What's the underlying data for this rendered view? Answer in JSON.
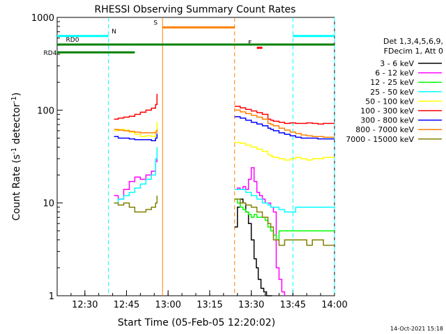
{
  "chart_data": {
    "type": "line",
    "title": "RHESSI Observing Summary Count Rates",
    "xlabel": "Start Time (05-Feb-05 12:20:02)",
    "ylabel_main": "Count Rate (s",
    "ylabel_sup1": "-1",
    "ylabel_mid": " detector",
    "ylabel_sup2": "-1",
    "ylabel_end": ")",
    "yscale": "log",
    "ylim": [
      1,
      1000
    ],
    "xlim_minutes": [
      0,
      100
    ],
    "x_ticks": [
      {
        "m": 10,
        "label": "12:30"
      },
      {
        "m": 25,
        "label": "12:45"
      },
      {
        "m": 40,
        "label": "13:00"
      },
      {
        "m": 55,
        "label": "13:15"
      },
      {
        "m": 70,
        "label": "13:30"
      },
      {
        "m": 85,
        "label": "13:45"
      },
      {
        "m": 100,
        "label": "14:00"
      }
    ],
    "y_ticks": [
      {
        "v": 1,
        "label": "1"
      },
      {
        "v": 10,
        "label": "10"
      },
      {
        "v": 100,
        "label": "100"
      },
      {
        "v": 1000,
        "label": "1000"
      }
    ],
    "legend_header": [
      "Det 1,3,4,5,6,9,",
      "FDecim 1, Att 0"
    ],
    "series": [
      {
        "name": "3 - 6 keV",
        "color": "#000000",
        "points": [
          [
            64,
            5.5
          ],
          [
            65,
            9
          ],
          [
            66,
            11
          ],
          [
            67,
            10
          ],
          [
            68,
            8
          ],
          [
            69,
            6
          ],
          [
            70,
            4
          ],
          [
            71,
            2.5
          ],
          [
            71.8,
            2
          ],
          [
            72.5,
            1.5
          ],
          [
            73.5,
            1.2
          ],
          [
            74.5,
            1.1
          ],
          [
            75.5,
            1
          ],
          [
            76.5,
            1
          ],
          [
            77.5,
            1
          ]
        ]
      },
      {
        "name": "6 - 12 keV",
        "color": "#ff00ff",
        "points": [
          [
            20.5,
            12
          ],
          [
            22,
            11
          ],
          [
            24,
            14
          ],
          [
            26,
            17
          ],
          [
            28,
            19
          ],
          [
            30,
            18
          ],
          [
            32,
            20
          ],
          [
            34,
            22
          ],
          [
            35.5,
            28
          ],
          [
            36,
            35
          ],
          [
            64,
            14
          ],
          [
            65,
            14.5
          ],
          [
            66,
            14
          ],
          [
            67,
            15
          ],
          [
            68,
            14
          ],
          [
            69,
            18
          ],
          [
            70,
            24
          ],
          [
            71,
            17
          ],
          [
            72,
            13
          ],
          [
            73,
            12
          ],
          [
            74,
            11
          ],
          [
            75,
            10
          ],
          [
            76,
            10
          ],
          [
            77,
            9
          ],
          [
            78,
            8
          ],
          [
            79,
            2
          ],
          [
            80,
            1.5
          ],
          [
            81,
            1.1
          ],
          [
            82,
            1
          ],
          [
            100,
            1
          ]
        ]
      },
      {
        "name": "12 - 25 keV",
        "color": "#00ff00",
        "points": [
          [
            64,
            11
          ],
          [
            65,
            10
          ],
          [
            66,
            9
          ],
          [
            67,
            8.5
          ],
          [
            68,
            8
          ],
          [
            69,
            7.5
          ],
          [
            70,
            7
          ],
          [
            71,
            7.5
          ],
          [
            72,
            7
          ],
          [
            73,
            7
          ],
          [
            74,
            7
          ],
          [
            75,
            6.5
          ],
          [
            76,
            5.5
          ],
          [
            77,
            5
          ],
          [
            78,
            4.5
          ],
          [
            79,
            4
          ],
          [
            80,
            5
          ],
          [
            85,
            5
          ],
          [
            90,
            5
          ],
          [
            95,
            5
          ],
          [
            100,
            5
          ]
        ]
      },
      {
        "name": "25 - 50 keV",
        "color": "#00ffff",
        "points": [
          [
            20.5,
            10
          ],
          [
            22,
            11
          ],
          [
            24,
            12
          ],
          [
            26,
            13
          ],
          [
            28,
            14.5
          ],
          [
            30,
            16
          ],
          [
            32,
            18
          ],
          [
            34,
            20
          ],
          [
            35.5,
            30
          ],
          [
            36,
            40
          ],
          [
            64,
            14
          ],
          [
            66,
            14
          ],
          [
            68,
            13
          ],
          [
            70,
            12
          ],
          [
            72,
            11
          ],
          [
            74,
            10
          ],
          [
            76,
            9.5
          ],
          [
            77,
            9
          ],
          [
            78,
            9
          ],
          [
            80,
            8.5
          ],
          [
            82,
            8
          ],
          [
            84,
            8
          ],
          [
            86,
            9
          ],
          [
            88,
            9
          ],
          [
            90,
            9
          ],
          [
            92,
            9
          ],
          [
            94,
            9
          ],
          [
            96,
            9
          ],
          [
            98,
            9
          ],
          [
            100,
            9
          ]
        ]
      },
      {
        "name": "50 - 100 keV",
        "color": "#ffff00",
        "points": [
          [
            20.5,
            60
          ],
          [
            22,
            62
          ],
          [
            24,
            61
          ],
          [
            26,
            58
          ],
          [
            28,
            55
          ],
          [
            30,
            52
          ],
          [
            32,
            53
          ],
          [
            34,
            52
          ],
          [
            35.5,
            60
          ],
          [
            36,
            75
          ],
          [
            64,
            45
          ],
          [
            66,
            44
          ],
          [
            68,
            42
          ],
          [
            70,
            40
          ],
          [
            72,
            38
          ],
          [
            74,
            36
          ],
          [
            76,
            33
          ],
          [
            77,
            32
          ],
          [
            78,
            31
          ],
          [
            80,
            30
          ],
          [
            82,
            29
          ],
          [
            84,
            30
          ],
          [
            86,
            31
          ],
          [
            88,
            30
          ],
          [
            90,
            29
          ],
          [
            92,
            30
          ],
          [
            94,
            30
          ],
          [
            96,
            31
          ],
          [
            98,
            31
          ],
          [
            100,
            31
          ]
        ]
      },
      {
        "name": "100 - 300 keV",
        "color": "#ff0000",
        "points": [
          [
            20.5,
            80
          ],
          [
            22,
            82
          ],
          [
            24,
            84
          ],
          [
            26,
            86
          ],
          [
            28,
            90
          ],
          [
            30,
            95
          ],
          [
            32,
            100
          ],
          [
            34,
            105
          ],
          [
            35.5,
            115
          ],
          [
            36,
            150
          ],
          [
            64,
            110
          ],
          [
            66,
            106
          ],
          [
            68,
            102
          ],
          [
            70,
            98
          ],
          [
            72,
            94
          ],
          [
            74,
            90
          ],
          [
            76,
            80
          ],
          [
            77,
            78
          ],
          [
            78,
            76
          ],
          [
            80,
            74
          ],
          [
            82,
            72
          ],
          [
            84,
            73
          ],
          [
            86,
            72
          ],
          [
            88,
            72
          ],
          [
            90,
            73
          ],
          [
            92,
            72
          ],
          [
            94,
            71
          ],
          [
            96,
            72
          ],
          [
            98,
            72
          ],
          [
            100,
            72
          ]
        ]
      },
      {
        "name": "300 - 800 keV",
        "color": "#0000ff",
        "points": [
          [
            20.5,
            52
          ],
          [
            22,
            50
          ],
          [
            24,
            50
          ],
          [
            26,
            49
          ],
          [
            28,
            48
          ],
          [
            30,
            48
          ],
          [
            32,
            48
          ],
          [
            34,
            47
          ],
          [
            35.5,
            50
          ],
          [
            36,
            56
          ],
          [
            64,
            85
          ],
          [
            66,
            82
          ],
          [
            68,
            78
          ],
          [
            70,
            74
          ],
          [
            72,
            71
          ],
          [
            74,
            68
          ],
          [
            76,
            64
          ],
          [
            77,
            62
          ],
          [
            78,
            60
          ],
          [
            80,
            57
          ],
          [
            82,
            55
          ],
          [
            84,
            53
          ],
          [
            86,
            51
          ],
          [
            88,
            50
          ],
          [
            90,
            50
          ],
          [
            92,
            50
          ],
          [
            94,
            49
          ],
          [
            96,
            49
          ],
          [
            98,
            49
          ],
          [
            100,
            49
          ]
        ]
      },
      {
        "name": "800 - 7000 keV",
        "color": "#ff8000",
        "points": [
          [
            20.5,
            62
          ],
          [
            22,
            61
          ],
          [
            24,
            60
          ],
          [
            26,
            59
          ],
          [
            28,
            58
          ],
          [
            30,
            57
          ],
          [
            32,
            57
          ],
          [
            34,
            57
          ],
          [
            35.5,
            58
          ],
          [
            36,
            62
          ],
          [
            64,
            100
          ],
          [
            66,
            96
          ],
          [
            68,
            92
          ],
          [
            70,
            88
          ],
          [
            72,
            84
          ],
          [
            74,
            80
          ],
          [
            76,
            72
          ],
          [
            77,
            70
          ],
          [
            78,
            68
          ],
          [
            80,
            64
          ],
          [
            82,
            61
          ],
          [
            84,
            58
          ],
          [
            86,
            56
          ],
          [
            88,
            54
          ],
          [
            90,
            53
          ],
          [
            92,
            52
          ],
          [
            94,
            52
          ],
          [
            96,
            51
          ],
          [
            98,
            51
          ],
          [
            100,
            51
          ]
        ]
      },
      {
        "name": "7000 - 15000 keV",
        "color": "#808000",
        "points": [
          [
            20.5,
            10
          ],
          [
            22,
            9.5
          ],
          [
            24,
            10
          ],
          [
            26,
            9
          ],
          [
            28,
            8
          ],
          [
            30,
            8
          ],
          [
            32,
            8.5
          ],
          [
            34,
            9
          ],
          [
            35.5,
            10
          ],
          [
            36,
            12
          ],
          [
            64,
            11
          ],
          [
            66,
            10
          ],
          [
            68,
            9.5
          ],
          [
            70,
            9
          ],
          [
            72,
            8
          ],
          [
            74,
            7
          ],
          [
            76,
            6
          ],
          [
            77,
            5.5
          ],
          [
            78,
            4
          ],
          [
            80,
            3.5
          ],
          [
            82,
            4
          ],
          [
            84,
            4
          ],
          [
            86,
            4
          ],
          [
            88,
            4
          ],
          [
            90,
            3.5
          ],
          [
            92,
            4
          ],
          [
            94,
            4
          ],
          [
            96,
            3.5
          ],
          [
            98,
            3.5
          ],
          [
            100,
            3.5
          ]
        ]
      }
    ],
    "state_bars": [
      {
        "label": "N",
        "color": "#00ffff",
        "y": 630,
        "start": 0,
        "end": 18.5
      },
      {
        "label": "",
        "color": "#00ffff",
        "y": 630,
        "start": 85,
        "end": 100
      },
      {
        "label": "S",
        "color": "#ff8000",
        "y": 780,
        "start": 38,
        "end": 64
      },
      {
        "label": "F",
        "color": "#ff0000",
        "y": 470,
        "start": 72,
        "end": 74
      },
      {
        "label": "RD0",
        "color": "#008000",
        "y": 510,
        "start": 0,
        "end": 28
      },
      {
        "label": "",
        "color": "#008000",
        "y": 510,
        "start": 28,
        "end": 100
      },
      {
        "label": "RD4",
        "color": "#008000",
        "y": 420,
        "start": 0,
        "end": 28
      }
    ],
    "vlines": [
      {
        "m": 18.5,
        "color": "#00ffff",
        "dash": true
      },
      {
        "m": 38,
        "color": "#ff8000",
        "dash": false
      },
      {
        "m": 64,
        "color": "#ff8000",
        "dash": true
      },
      {
        "m": 85,
        "color": "#00ffff",
        "dash": true
      },
      {
        "m": 100,
        "color": "#00ffff",
        "dash": true
      }
    ],
    "grid": false
  },
  "footer_date": "14-Oct-2021 15:18"
}
